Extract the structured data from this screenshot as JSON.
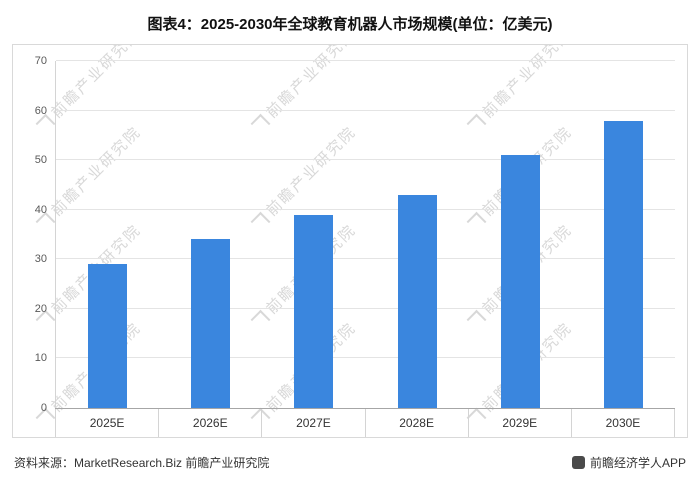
{
  "page": {
    "title": "图表4：2025-2030年全球教育机器人市场规模(单位：亿美元)"
  },
  "chart_data": {
    "type": "bar",
    "title": "图表4：2025-2030年全球教育机器人市场规模(单位：亿美元)",
    "categories": [
      "2025E",
      "2026E",
      "2027E",
      "2028E",
      "2029E",
      "2030E"
    ],
    "values": [
      29,
      34,
      39,
      43,
      51,
      58
    ],
    "unit": "亿美元",
    "xlabel": "",
    "ylabel": "",
    "ylim": [
      0,
      70
    ],
    "yticks": [
      0,
      10,
      20,
      30,
      40,
      50,
      60,
      70
    ],
    "grid": true,
    "legend_position": "none",
    "bar_color": "#3A86DE"
  },
  "watermark": {
    "text": "前瞻产业研究院"
  },
  "footer": {
    "source": "资料来源：MarketResearch.Biz 前瞻产业研究院",
    "credit": "前瞻经济学人APP"
  }
}
